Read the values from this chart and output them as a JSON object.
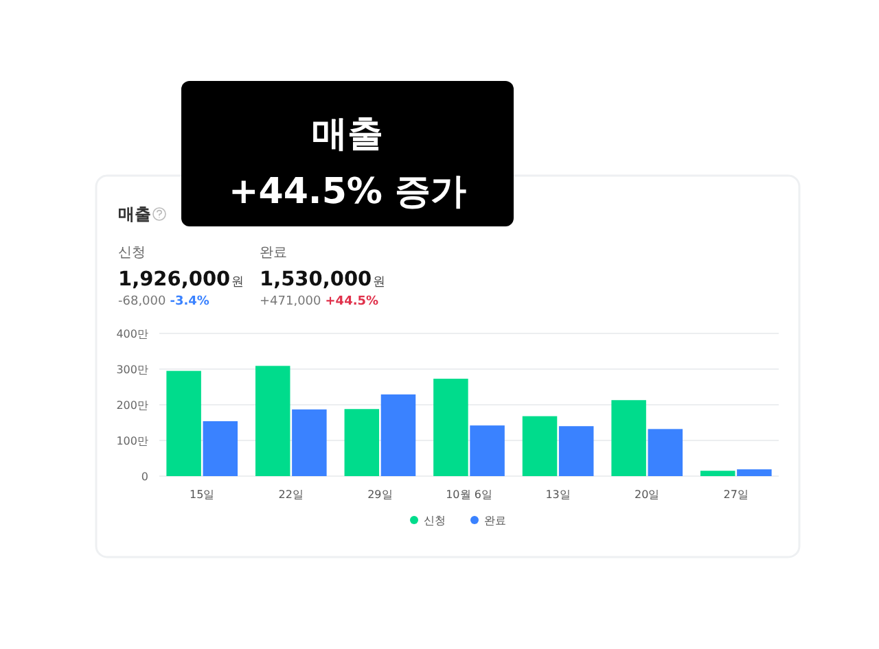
{
  "chart_data": {
    "type": "bar",
    "title": "매출",
    "categories": [
      "15일",
      "22일",
      "29일",
      "10월 6일",
      "13일",
      "20일",
      "27일"
    ],
    "series": [
      {
        "name": "신청",
        "color": "#00dc8c",
        "values": [
          295,
          309,
          188,
          273,
          168,
          213,
          15
        ]
      },
      {
        "name": "완료",
        "color": "#3a82ff",
        "values": [
          154,
          187,
          229,
          142,
          140,
          132,
          19
        ]
      }
    ],
    "ylim": [
      0,
      400
    ],
    "yticks": [
      0,
      {
        "value": 100,
        "label": "100만"
      },
      {
        "value": 200,
        "label": "200만"
      },
      {
        "value": 300,
        "label": "300만"
      },
      {
        "value": 400,
        "label": "400만"
      }
    ],
    "grid": "y",
    "legend": "bottom",
    "marker": "circle",
    "annotations": [
      "매출\n+44.5% 증가",
      "신청",
      "1,926,000원",
      "-68,000",
      "-3.4%",
      "완료",
      "1,530,000원",
      "+471,000",
      "+44.5%"
    ]
  }
}
